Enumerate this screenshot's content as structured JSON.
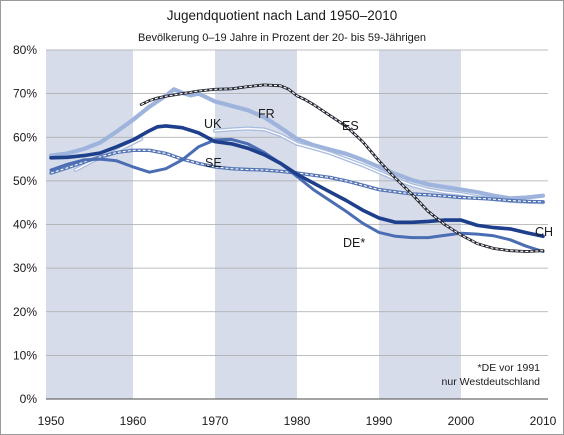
{
  "chart_data": {
    "type": "line",
    "title": "Jugendquotient nach Land 1950–2010",
    "subtitle": "Bevölkerung 0–19 Jahre in Prozent der 20- bis 59-Jährigen",
    "footnote": [
      "*DE vor 1991",
      "nur Westdeutschland"
    ],
    "xlim": [
      1950,
      2010
    ],
    "ylim": [
      0,
      80
    ],
    "xticks": [
      1950,
      1960,
      1970,
      1980,
      1990,
      2000,
      2010
    ],
    "xtick_labels": [
      "1950",
      "1960",
      "1970",
      "1980",
      "1990",
      "2000",
      "2010"
    ],
    "yticks": [
      0,
      10,
      20,
      30,
      40,
      50,
      60,
      70,
      80
    ],
    "ytick_labels": [
      "0%",
      "10%",
      "20%",
      "30%",
      "40%",
      "50%",
      "60%",
      "70%",
      "80%"
    ],
    "grid": true,
    "shaded_periods": [
      [
        1950,
        1960
      ],
      [
        1970,
        1980
      ],
      [
        1990,
        2000
      ]
    ],
    "colors": {
      "band": "#d6dcea",
      "grid": "#a8a8a8",
      "background": "#ffffff"
    },
    "series": [
      {
        "name": "FR",
        "color": "#9fb4dc",
        "x": [
          1950,
          1952,
          1954,
          1956,
          1958,
          1960,
          1962,
          1964,
          1965,
          1966,
          1967,
          1968,
          1970,
          1972,
          1974,
          1976,
          1978,
          1980,
          1982,
          1984,
          1986,
          1988,
          1990,
          1992,
          1994,
          1996,
          1998,
          2000,
          2002,
          2004,
          2006,
          2008,
          2010
        ],
        "y": [
          55.8,
          56.3,
          57.3,
          58.8,
          61.3,
          64,
          67,
          69.5,
          71,
          70.2,
          69.6,
          70,
          68.2,
          67.2,
          66.2,
          64.6,
          62.2,
          59.6,
          58.2,
          57.2,
          56.2,
          54.8,
          53.2,
          51.6,
          50.2,
          49.2,
          48.6,
          48,
          47.4,
          46.6,
          46,
          46.2,
          46.6
        ]
      },
      {
        "name": "UK",
        "color": "#a8bce0",
        "x": [
          1953,
          1955,
          1957,
          1959,
          1961,
          1962,
          1970,
          1972,
          1974,
          1976,
          1978,
          1980,
          1982,
          1984,
          1986,
          1988,
          1990,
          1992,
          1994,
          1996,
          1998,
          2000,
          2002,
          2004,
          2006,
          2008,
          2010
        ],
        "y": [
          52.5,
          54.5,
          56,
          57.8,
          59.6,
          null,
          61.5,
          61.8,
          62,
          61.8,
          60.5,
          58.5,
          57.5,
          56.4,
          55,
          53.6,
          52,
          50.4,
          49,
          48,
          47.4,
          47,
          46.3,
          45.8,
          45.4,
          45.2,
          45.1
        ]
      },
      {
        "name": "SE",
        "color": "#5575b5",
        "x": [
          1950,
          1952,
          1954,
          1956,
          1958,
          1960,
          1962,
          1964,
          1966,
          1968,
          1970,
          1972,
          1974,
          1976,
          1978,
          1980,
          1982,
          1984,
          1986,
          1988,
          1990,
          1992,
          1994,
          1996,
          1998,
          2000,
          2002,
          2004,
          2006,
          2008,
          2010
        ],
        "y": [
          51.8,
          53,
          54.3,
          55.5,
          56.5,
          57,
          57,
          56.3,
          55,
          54,
          53.2,
          52.8,
          52.6,
          52.5,
          52.2,
          51.8,
          51.3,
          50.8,
          50,
          49,
          48,
          47.5,
          47,
          46.8,
          46.5,
          46.2,
          46,
          45.8,
          45.5,
          45.3,
          45.2
        ]
      },
      {
        "name": "DE*",
        "color": "#4b6db3",
        "x": [
          1950,
          1952,
          1954,
          1956,
          1958,
          1960,
          1962,
          1964,
          1966,
          1968,
          1970,
          1972,
          1974,
          1976,
          1978,
          1980,
          1982,
          1984,
          1986,
          1988,
          1990,
          1992,
          1994,
          1996,
          1998,
          2000,
          2002,
          2004,
          2006,
          2008,
          2010
        ],
        "y": [
          52.5,
          53.8,
          54.8,
          55,
          54.6,
          53.2,
          52,
          52.8,
          54.8,
          57.8,
          59.4,
          59.5,
          58.5,
          56.5,
          54,
          51,
          48,
          45.5,
          43,
          40.3,
          38.2,
          37.3,
          37,
          37,
          37.5,
          38,
          37.8,
          37.4,
          36.5,
          35,
          33.8
        ]
      },
      {
        "name": "CH",
        "color": "#1e3f8b",
        "x": [
          1950,
          1952,
          1954,
          1956,
          1958,
          1960,
          1962,
          1963,
          1964,
          1966,
          1968,
          1970,
          1972,
          1974,
          1976,
          1978,
          1980,
          1982,
          1984,
          1986,
          1988,
          1990,
          1992,
          1994,
          1996,
          1998,
          2000,
          2002,
          2004,
          2006,
          2008,
          2010
        ],
        "y": [
          55.3,
          55.4,
          55.8,
          56.4,
          57.8,
          59.4,
          61.5,
          62.4,
          62.6,
          62.2,
          61,
          59,
          58.5,
          57.5,
          56,
          54,
          51.5,
          49.5,
          47.5,
          45.5,
          43.3,
          41.5,
          40.5,
          40.5,
          40.7,
          41,
          41,
          39.8,
          39.3,
          39,
          38.1,
          37.3
        ]
      },
      {
        "name": "ES",
        "color": "#262833",
        "x": [
          1961,
          1962,
          1963,
          1964,
          1966,
          1968,
          1970,
          1972,
          1974,
          1976,
          1978,
          1979,
          1980,
          1981,
          1982,
          1984,
          1986,
          1988,
          1990,
          1992,
          1994,
          1996,
          1998,
          2000,
          2002,
          2004,
          2006,
          2008,
          2010
        ],
        "y": [
          67.5,
          68.4,
          69,
          69.4,
          70,
          70.6,
          71,
          71.1,
          71.6,
          72,
          71.8,
          71,
          69.5,
          68.6,
          67.5,
          65,
          62.5,
          59,
          54.6,
          50.6,
          47,
          43,
          40,
          37.6,
          35.6,
          34.5,
          34,
          33.8,
          34
        ]
      }
    ]
  }
}
